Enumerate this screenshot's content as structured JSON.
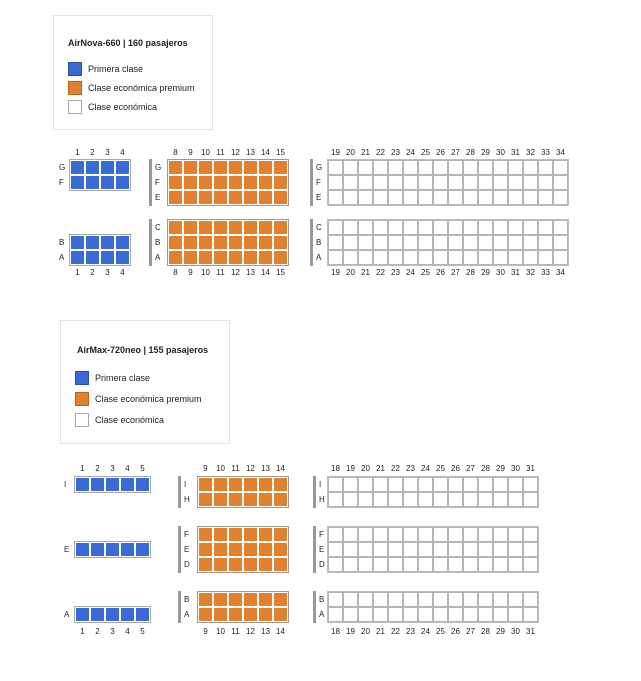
{
  "colors": {
    "first": "#3a6ad6",
    "premium": "#e2802e",
    "economy": "#ffffff"
  },
  "planes": [
    {
      "title": "AirNova-660 | 160 pasajeros",
      "legend": [
        "Primera clase",
        "Clase económica premium",
        "Clase económica"
      ],
      "classes": [
        {
          "class": "first",
          "rows": [
            1,
            2,
            3,
            4
          ],
          "groups": [
            [
              "G",
              "F"
            ],
            [
              "B",
              "A"
            ]
          ]
        },
        {
          "class": "premium",
          "rows": [
            8,
            9,
            10,
            11,
            12,
            13,
            14,
            15
          ],
          "groups": [
            [
              "G",
              "F",
              "E"
            ],
            [
              "C",
              "B",
              "A"
            ]
          ]
        },
        {
          "class": "economy",
          "rows": [
            19,
            20,
            21,
            22,
            23,
            24,
            25,
            26,
            27,
            28,
            29,
            30,
            31,
            32,
            33,
            34
          ],
          "groups": [
            [
              "G",
              "F",
              "E"
            ],
            [
              "C",
              "B",
              "A"
            ]
          ]
        }
      ]
    },
    {
      "title": "AirMax-720neo | 155 pasajeros",
      "legend": [
        "Primera clase",
        "Clase económica premium",
        "Clase económica"
      ],
      "classes": [
        {
          "class": "first",
          "rows": [
            1,
            2,
            3,
            4,
            5
          ],
          "groups": [
            [
              "I"
            ],
            [
              "E"
            ],
            [
              "A"
            ]
          ]
        },
        {
          "class": "premium",
          "rows": [
            9,
            10,
            11,
            12,
            13,
            14
          ],
          "groups": [
            [
              "I",
              "H"
            ],
            [
              "F",
              "E",
              "D"
            ],
            [
              "B",
              "A"
            ]
          ]
        },
        {
          "class": "economy",
          "rows": [
            18,
            19,
            20,
            21,
            22,
            23,
            24,
            25,
            26,
            27,
            28,
            29,
            30,
            31
          ],
          "groups": [
            [
              "I",
              "H"
            ],
            [
              "F",
              "E",
              "D"
            ],
            [
              "B",
              "A"
            ]
          ]
        }
      ]
    }
  ]
}
